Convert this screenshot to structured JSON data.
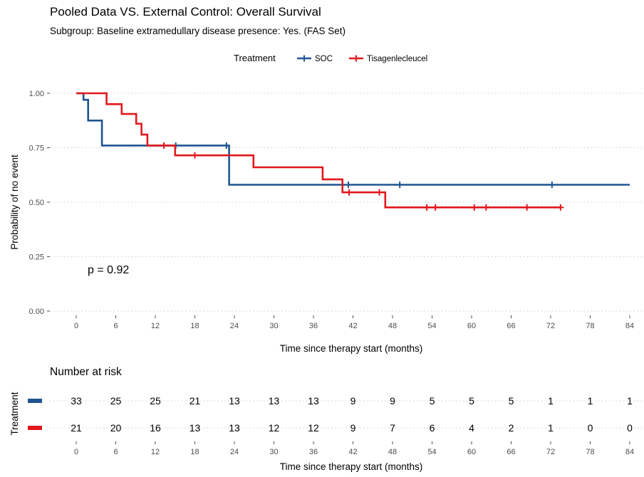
{
  "chart_data": {
    "type": "line",
    "subtype": "kaplan-meier",
    "title": "Pooled Data VS. External Control: Overall Survival",
    "subtitle": "Subgroup: Baseline extramedullary disease presence: Yes. (FAS Set)",
    "xlabel": "Time since therapy start (months)",
    "ylabel": "Probability of no event",
    "xlim": [
      0,
      84
    ],
    "ylim": [
      0,
      1
    ],
    "xticks": [
      0,
      6,
      12,
      18,
      24,
      30,
      36,
      42,
      48,
      54,
      60,
      66,
      72,
      78,
      84
    ],
    "yticks": [
      0,
      0.25,
      0.5,
      0.75,
      1
    ],
    "ytick_labels": [
      "0.00",
      "0.25",
      "0.50",
      "0.75",
      "1.00"
    ],
    "grid": true,
    "legend": {
      "title": "Treatment",
      "position": "top",
      "entries": [
        "SOC",
        "Tisagenlecleucel"
      ]
    },
    "annotation": "p = 0.92",
    "series": [
      {
        "name": "SOC",
        "color": "#1F5590",
        "steps": [
          [
            0,
            1.0
          ],
          [
            1.1,
            0.97
          ],
          [
            1.8,
            0.875
          ],
          [
            3.9,
            0.76
          ],
          [
            23.2,
            0.58
          ],
          [
            84,
            0.58
          ]
        ],
        "censor_x": [
          15.1,
          22.8,
          41.3,
          49.1,
          72.2
        ]
      },
      {
        "name": "Tisagenlecleucel",
        "color": "#E2181D",
        "steps": [
          [
            0,
            1.0
          ],
          [
            4.6,
            0.95
          ],
          [
            6.9,
            0.905
          ],
          [
            9.1,
            0.86
          ],
          [
            9.9,
            0.81
          ],
          [
            10.8,
            0.76
          ],
          [
            15.0,
            0.715
          ],
          [
            24.1,
            0.715
          ],
          [
            26.9,
            0.66
          ],
          [
            37.4,
            0.605
          ],
          [
            40.4,
            0.545
          ],
          [
            46.9,
            0.476
          ],
          [
            73.5,
            0.476
          ]
        ],
        "censor_x": [
          13.3,
          18.0,
          41.4,
          46.0,
          53.2,
          54.5,
          60.4,
          62.2,
          68.4,
          73.5
        ]
      }
    ],
    "risk_table": {
      "title": "Number at risk",
      "ylabel": "Treatment",
      "xlabel": "Time since therapy start (months)",
      "rows": [
        {
          "name": "SOC",
          "color": "#1F5590",
          "values": [
            "33",
            "25",
            "25",
            "21",
            "13",
            "13",
            "13",
            "9",
            "9",
            "5",
            "5",
            "5",
            "1",
            "1",
            "1"
          ]
        },
        {
          "name": "Tisagenlecleucel",
          "color": "#E2181D",
          "values": [
            "21",
            "20",
            "16",
            "13",
            "13",
            "12",
            "12",
            "9",
            "7",
            "6",
            "4",
            "2",
            "1",
            "0",
            "0"
          ]
        }
      ]
    }
  }
}
